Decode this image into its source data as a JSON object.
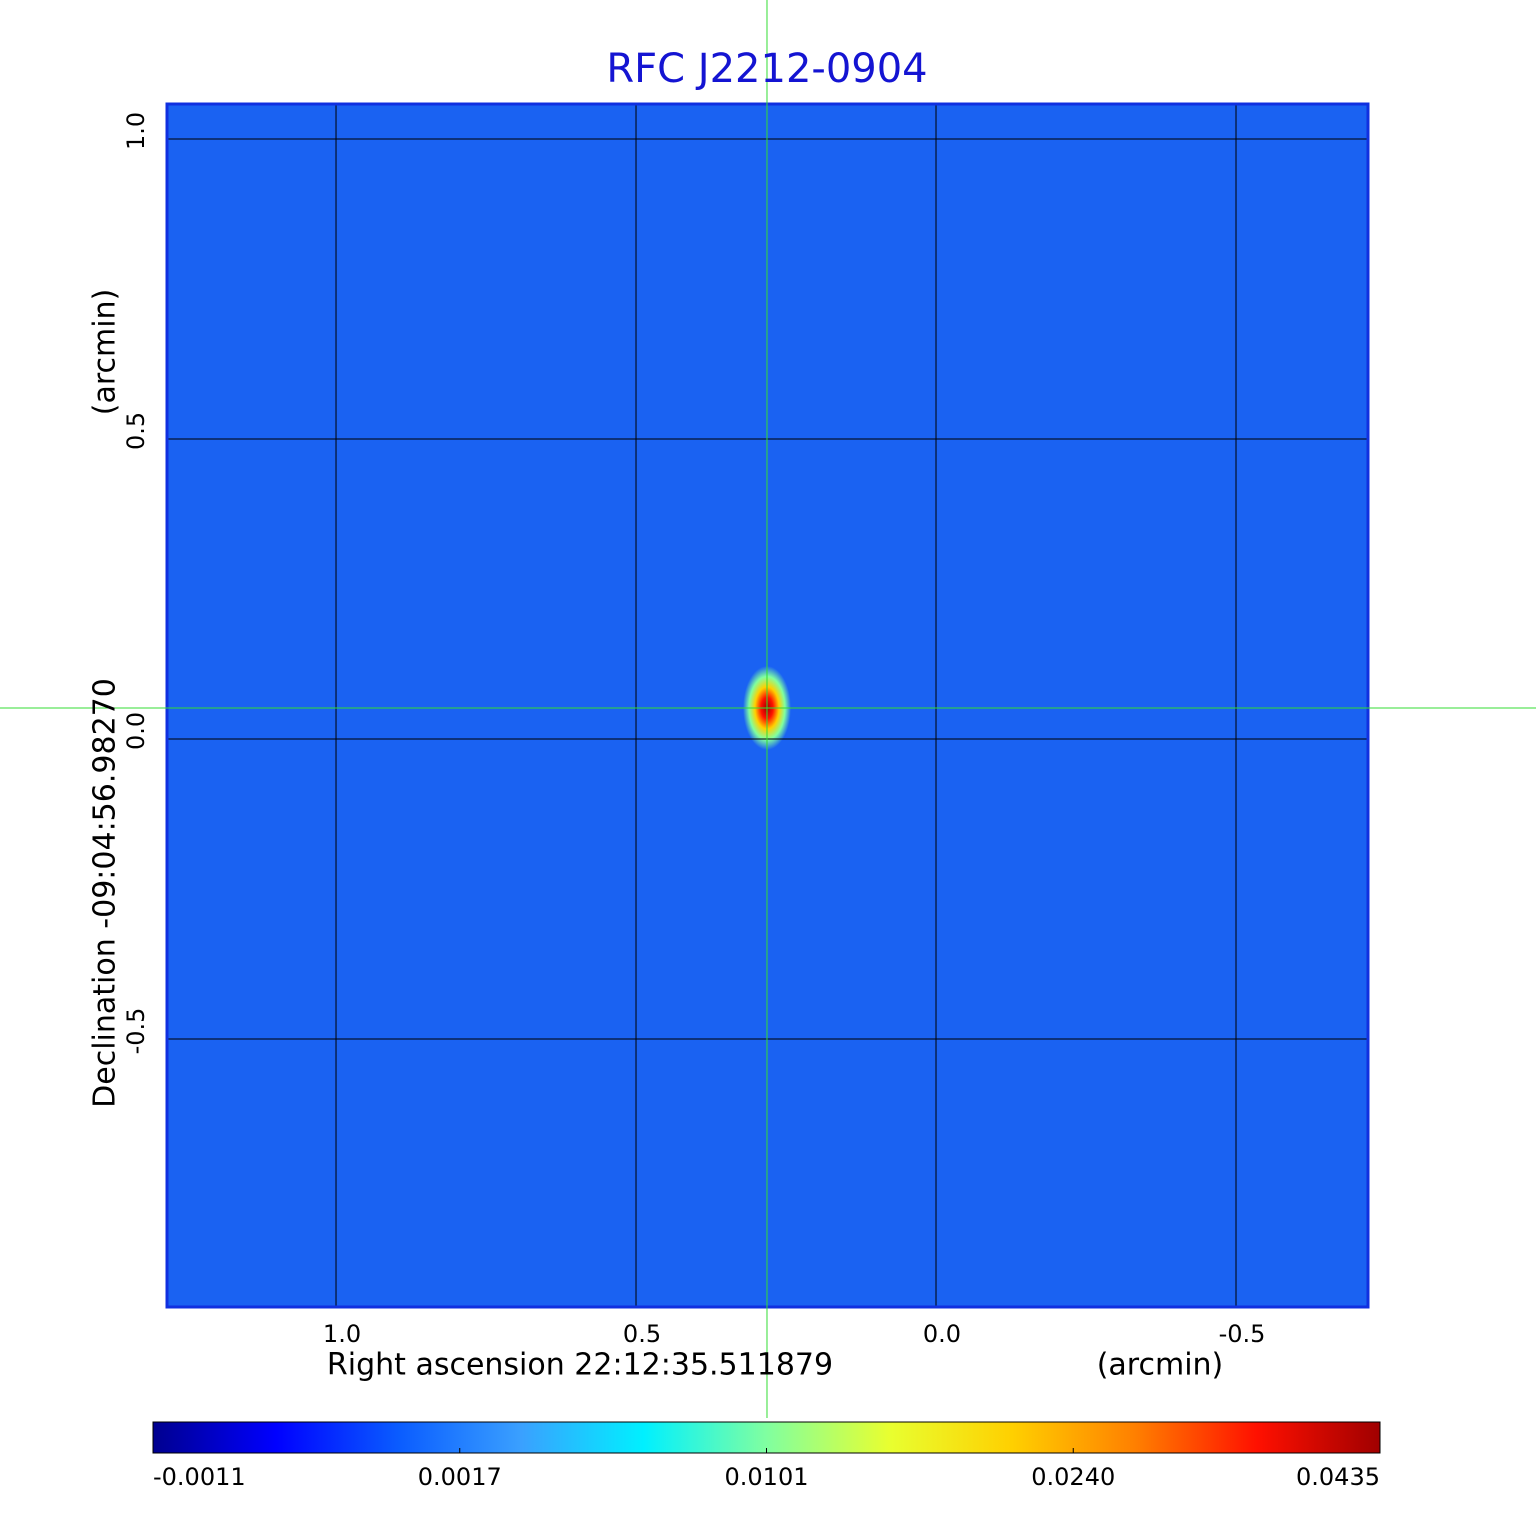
{
  "chart_data": {
    "type": "image",
    "title": "RFC J2212-0904",
    "x_label": "Right ascension  22:12:35.511879",
    "x_unit": "(arcmin)",
    "y_label": "Declination  -09:04:56.98270",
    "y_unit": "(arcmin)",
    "xlim": [
      1.2817,
      -0.72
    ],
    "ylim": [
      -0.9467,
      1.0583
    ],
    "xticks": [
      {
        "value": 1,
        "label": "1.0"
      },
      0.5,
      {
        "value": 0,
        "label": "0.0"
      },
      -0.5
    ],
    "yticks": [
      -0.5,
      {
        "value": 0,
        "label": "0.0"
      },
      0.5,
      {
        "value": 1,
        "label": "1.0"
      }
    ],
    "grid": true,
    "image_color": "#1a62f2",
    "source": {
      "x": 0.2817,
      "y": 0.0517,
      "peak": 0.0435
    },
    "crosshair_color": "#33dd33",
    "colorbar_ticks": [
      -0.0011,
      0.0017,
      0.0101,
      {
        "value": 0.024,
        "label": "0.0240"
      },
      0.0435
    ],
    "colormap": [
      "#00008f",
      "#0000ff",
      "#0a5cff",
      "#3aa0ff",
      "#00f0ff",
      "#80ffa0",
      "#e8ff30",
      "#ffd000",
      "#ff8000",
      "#ff1000",
      "#a00000"
    ]
  }
}
